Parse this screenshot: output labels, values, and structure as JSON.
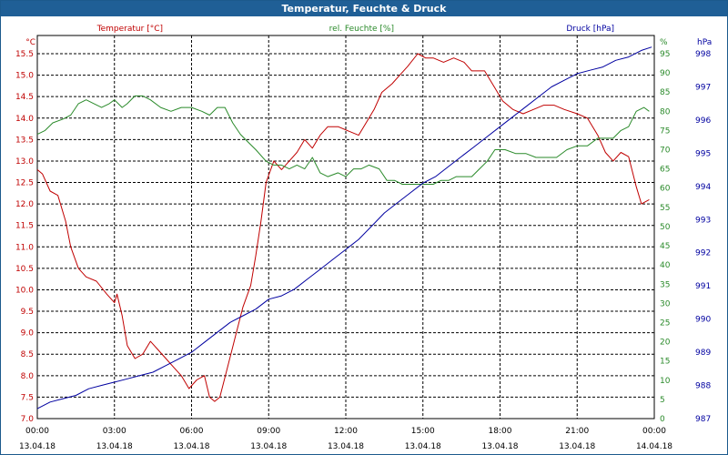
{
  "chart_data": {
    "type": "line",
    "title": "Temperatur, Feuchte & Druck",
    "x_ticks": [
      {
        "time": "00:00",
        "date": "13.04.18"
      },
      {
        "time": "03:00",
        "date": "13.04.18"
      },
      {
        "time": "06:00",
        "date": "13.04.18"
      },
      {
        "time": "09:00",
        "date": "13.04.18"
      },
      {
        "time": "12:00",
        "date": "13.04.18"
      },
      {
        "time": "15:00",
        "date": "13.04.18"
      },
      {
        "time": "18:00",
        "date": "13.04.18"
      },
      {
        "time": "21:00",
        "date": "13.04.18"
      },
      {
        "time": "00:00",
        "date": "14.04.18"
      }
    ],
    "xlim_hours": [
      0,
      24
    ],
    "axes": {
      "temp": {
        "label": "Temperatur [°C]",
        "unit": "°C",
        "min": 7.0,
        "max": 15.5,
        "step": 0.5,
        "color": "#c00000"
      },
      "humidity": {
        "label": "rel. Feuchte [%]",
        "unit": "%",
        "min": 0,
        "max": 95,
        "step": 5,
        "color": "#2a8a2a"
      },
      "pressure": {
        "label": "Druck [hPa]",
        "unit": "hPa",
        "min": 987,
        "max": 998,
        "step": 1,
        "color": "#0000a0"
      }
    },
    "series": [
      {
        "name": "Temperatur [°C]",
        "axis": "temp",
        "color": "#c00000",
        "points": [
          [
            0,
            12.8
          ],
          [
            0.2,
            12.7
          ],
          [
            0.5,
            12.3
          ],
          [
            0.8,
            12.2
          ],
          [
            1.1,
            11.6
          ],
          [
            1.3,
            11.0
          ],
          [
            1.6,
            10.5
          ],
          [
            1.9,
            10.3
          ],
          [
            2.3,
            10.2
          ],
          [
            2.7,
            9.9
          ],
          [
            3.0,
            9.7
          ],
          [
            3.1,
            9.9
          ],
          [
            3.3,
            9.4
          ],
          [
            3.5,
            8.7
          ],
          [
            3.8,
            8.4
          ],
          [
            4.1,
            8.5
          ],
          [
            4.4,
            8.8
          ],
          [
            4.7,
            8.6
          ],
          [
            5.0,
            8.4
          ],
          [
            5.3,
            8.2
          ],
          [
            5.6,
            8.0
          ],
          [
            5.9,
            7.7
          ],
          [
            6.2,
            7.9
          ],
          [
            6.5,
            8.0
          ],
          [
            6.7,
            7.5
          ],
          [
            6.9,
            7.4
          ],
          [
            7.1,
            7.5
          ],
          [
            7.4,
            8.2
          ],
          [
            7.7,
            8.9
          ],
          [
            8.0,
            9.6
          ],
          [
            8.3,
            10.1
          ],
          [
            8.5,
            10.8
          ],
          [
            8.7,
            11.6
          ],
          [
            8.9,
            12.5
          ],
          [
            9.2,
            13.0
          ],
          [
            9.5,
            12.8
          ],
          [
            9.8,
            13.0
          ],
          [
            10.1,
            13.2
          ],
          [
            10.4,
            13.5
          ],
          [
            10.7,
            13.3
          ],
          [
            11.0,
            13.6
          ],
          [
            11.3,
            13.8
          ],
          [
            11.7,
            13.8
          ],
          [
            12.1,
            13.7
          ],
          [
            12.5,
            13.6
          ],
          [
            12.8,
            13.9
          ],
          [
            13.1,
            14.2
          ],
          [
            13.4,
            14.6
          ],
          [
            13.8,
            14.8
          ],
          [
            14.1,
            15.0
          ],
          [
            14.4,
            15.2
          ],
          [
            14.8,
            15.5
          ],
          [
            15.1,
            15.4
          ],
          [
            15.4,
            15.4
          ],
          [
            15.8,
            15.3
          ],
          [
            16.2,
            15.4
          ],
          [
            16.6,
            15.3
          ],
          [
            16.9,
            15.1
          ],
          [
            17.4,
            15.1
          ],
          [
            17.8,
            14.7
          ],
          [
            18.1,
            14.4
          ],
          [
            18.5,
            14.2
          ],
          [
            18.9,
            14.1
          ],
          [
            19.3,
            14.2
          ],
          [
            19.7,
            14.3
          ],
          [
            20.1,
            14.3
          ],
          [
            20.5,
            14.2
          ],
          [
            21.0,
            14.1
          ],
          [
            21.4,
            14.0
          ],
          [
            21.8,
            13.6
          ],
          [
            22.1,
            13.2
          ],
          [
            22.4,
            13.0
          ],
          [
            22.7,
            13.2
          ],
          [
            23.0,
            13.1
          ],
          [
            23.3,
            12.4
          ],
          [
            23.5,
            12.0
          ],
          [
            23.8,
            12.1
          ]
        ]
      },
      {
        "name": "rel. Feuchte [%]",
        "axis": "humidity",
        "color": "#2a8a2a",
        "points": [
          [
            0,
            74
          ],
          [
            0.3,
            75
          ],
          [
            0.6,
            77
          ],
          [
            1.0,
            78
          ],
          [
            1.3,
            79
          ],
          [
            1.6,
            82
          ],
          [
            1.9,
            83
          ],
          [
            2.2,
            82
          ],
          [
            2.5,
            81
          ],
          [
            2.8,
            82
          ],
          [
            3.0,
            83
          ],
          [
            3.3,
            81
          ],
          [
            3.5,
            82
          ],
          [
            3.8,
            84
          ],
          [
            4.1,
            84
          ],
          [
            4.4,
            83
          ],
          [
            4.8,
            81
          ],
          [
            5.2,
            80
          ],
          [
            5.6,
            81
          ],
          [
            6.0,
            81
          ],
          [
            6.4,
            80
          ],
          [
            6.7,
            79
          ],
          [
            7.0,
            81
          ],
          [
            7.3,
            81
          ],
          [
            7.6,
            77
          ],
          [
            7.9,
            74
          ],
          [
            8.2,
            72
          ],
          [
            8.5,
            70
          ],
          [
            8.9,
            67
          ],
          [
            9.2,
            66
          ],
          [
            9.5,
            66
          ],
          [
            9.8,
            65
          ],
          [
            10.1,
            66
          ],
          [
            10.4,
            65
          ],
          [
            10.7,
            68
          ],
          [
            11.0,
            64
          ],
          [
            11.3,
            63
          ],
          [
            11.7,
            64
          ],
          [
            12.0,
            63
          ],
          [
            12.3,
            65
          ],
          [
            12.6,
            65
          ],
          [
            12.9,
            66
          ],
          [
            13.3,
            65
          ],
          [
            13.6,
            62
          ],
          [
            13.9,
            62
          ],
          [
            14.2,
            61
          ],
          [
            14.5,
            61
          ],
          [
            14.8,
            61
          ],
          [
            15.1,
            61
          ],
          [
            15.4,
            61
          ],
          [
            15.7,
            62
          ],
          [
            16.0,
            62
          ],
          [
            16.3,
            63
          ],
          [
            16.6,
            63
          ],
          [
            16.9,
            63
          ],
          [
            17.2,
            65
          ],
          [
            17.5,
            67
          ],
          [
            17.8,
            70
          ],
          [
            18.2,
            70
          ],
          [
            18.6,
            69
          ],
          [
            19.0,
            69
          ],
          [
            19.4,
            68
          ],
          [
            19.8,
            68
          ],
          [
            20.2,
            68
          ],
          [
            20.6,
            70
          ],
          [
            21.0,
            71
          ],
          [
            21.4,
            71
          ],
          [
            21.8,
            73
          ],
          [
            22.1,
            73
          ],
          [
            22.4,
            73
          ],
          [
            22.7,
            75
          ],
          [
            23.0,
            76
          ],
          [
            23.3,
            80
          ],
          [
            23.6,
            81
          ],
          [
            23.8,
            80
          ]
        ]
      },
      {
        "name": "Druck [hPa]",
        "axis": "pressure",
        "color": "#0000a0",
        "points": [
          [
            0,
            987.3
          ],
          [
            0.5,
            987.5
          ],
          [
            1.0,
            987.6
          ],
          [
            1.5,
            987.7
          ],
          [
            2.0,
            987.9
          ],
          [
            2.5,
            988.0
          ],
          [
            3.0,
            988.1
          ],
          [
            3.5,
            988.2
          ],
          [
            4.0,
            988.3
          ],
          [
            4.5,
            988.4
          ],
          [
            5.0,
            988.6
          ],
          [
            5.5,
            988.8
          ],
          [
            6.0,
            989.0
          ],
          [
            6.5,
            989.3
          ],
          [
            7.0,
            989.6
          ],
          [
            7.5,
            989.9
          ],
          [
            8.0,
            990.1
          ],
          [
            8.5,
            990.3
          ],
          [
            9.0,
            990.6
          ],
          [
            9.5,
            990.7
          ],
          [
            10.0,
            990.9
          ],
          [
            10.5,
            991.2
          ],
          [
            11.0,
            991.5
          ],
          [
            11.5,
            991.8
          ],
          [
            12.0,
            992.1
          ],
          [
            12.5,
            992.4
          ],
          [
            13.0,
            992.8
          ],
          [
            13.5,
            993.2
          ],
          [
            14.0,
            993.5
          ],
          [
            14.5,
            993.8
          ],
          [
            15.0,
            994.1
          ],
          [
            15.5,
            994.3
          ],
          [
            16.0,
            994.6
          ],
          [
            16.5,
            994.9
          ],
          [
            17.0,
            995.2
          ],
          [
            17.5,
            995.5
          ],
          [
            18.0,
            995.8
          ],
          [
            18.5,
            996.1
          ],
          [
            19.0,
            996.4
          ],
          [
            19.5,
            996.7
          ],
          [
            20.0,
            997.0
          ],
          [
            20.5,
            997.2
          ],
          [
            21.0,
            997.4
          ],
          [
            21.5,
            997.5
          ],
          [
            22.0,
            997.6
          ],
          [
            22.5,
            997.8
          ],
          [
            23.0,
            997.9
          ],
          [
            23.5,
            998.1
          ],
          [
            23.9,
            998.2
          ]
        ]
      }
    ]
  }
}
